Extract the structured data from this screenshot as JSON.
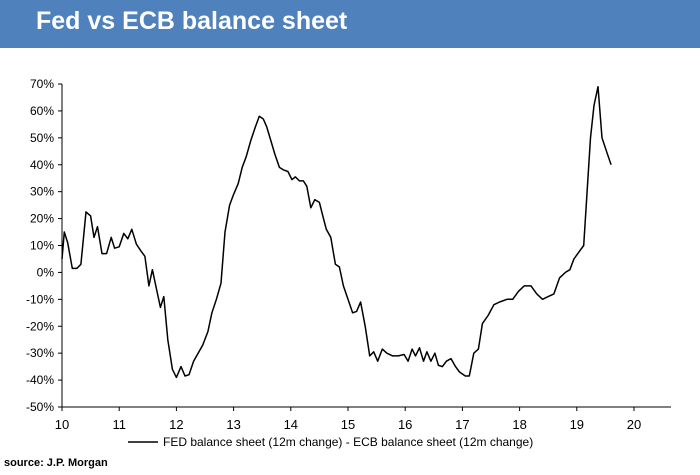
{
  "header": {
    "title": "Fed vs ECB balance sheet",
    "background_color": "#4f81bd",
    "text_color": "#ffffff"
  },
  "source": "source: J.P. Morgan",
  "chart_data": {
    "type": "line",
    "title": "",
    "xlabel": "",
    "ylabel": "",
    "xlim": [
      10,
      20.65
    ],
    "ylim": [
      -50,
      70
    ],
    "x_ticks": [
      10,
      11,
      12,
      13,
      14,
      15,
      16,
      17,
      18,
      19,
      20
    ],
    "x_tick_labels": [
      "10",
      "11",
      "12",
      "13",
      "14",
      "15",
      "16",
      "17",
      "18",
      "19",
      "20"
    ],
    "y_ticks": [
      -50,
      -40,
      -30,
      -20,
      -10,
      0,
      10,
      20,
      30,
      40,
      50,
      60,
      70
    ],
    "y_tick_labels": [
      "-50%",
      "-40%",
      "-30%",
      "-20%",
      "-10%",
      "0%",
      "10%",
      "20%",
      "30%",
      "40%",
      "50%",
      "60%",
      "70%"
    ],
    "grid": false,
    "legend_position": "bottom",
    "series": [
      {
        "name": "FED balance sheet (12m change) - ECB balance sheet (12m change)",
        "color": "#000000",
        "points": [
          [
            10.0,
            5
          ],
          [
            10.04,
            15
          ],
          [
            10.1,
            11
          ],
          [
            10.18,
            1.5
          ],
          [
            10.26,
            1.5
          ],
          [
            10.33,
            3
          ],
          [
            10.42,
            22.5
          ],
          [
            10.5,
            21
          ],
          [
            10.56,
            13
          ],
          [
            10.62,
            17
          ],
          [
            10.7,
            7
          ],
          [
            10.78,
            7
          ],
          [
            10.86,
            13
          ],
          [
            10.92,
            9
          ],
          [
            11.0,
            9.5
          ],
          [
            11.08,
            14.5
          ],
          [
            11.15,
            12.5
          ],
          [
            11.22,
            16
          ],
          [
            11.3,
            10.5
          ],
          [
            11.38,
            8
          ],
          [
            11.45,
            6
          ],
          [
            11.52,
            -5
          ],
          [
            11.58,
            1
          ],
          [
            11.65,
            -6
          ],
          [
            11.72,
            -13
          ],
          [
            11.78,
            -9
          ],
          [
            11.85,
            -25
          ],
          [
            11.93,
            -36
          ],
          [
            12.0,
            -39
          ],
          [
            12.08,
            -35
          ],
          [
            12.15,
            -38.5
          ],
          [
            12.22,
            -38
          ],
          [
            12.3,
            -33
          ],
          [
            12.38,
            -30
          ],
          [
            12.46,
            -27
          ],
          [
            12.55,
            -22
          ],
          [
            12.62,
            -15
          ],
          [
            12.7,
            -10
          ],
          [
            12.78,
            -4
          ],
          [
            12.85,
            15
          ],
          [
            12.93,
            25
          ],
          [
            13.0,
            29
          ],
          [
            13.08,
            33
          ],
          [
            13.15,
            39
          ],
          [
            13.22,
            43
          ],
          [
            13.3,
            49
          ],
          [
            13.38,
            54
          ],
          [
            13.45,
            58
          ],
          [
            13.52,
            57
          ],
          [
            13.58,
            54
          ],
          [
            13.65,
            49
          ],
          [
            13.72,
            44
          ],
          [
            13.8,
            39
          ],
          [
            13.88,
            38
          ],
          [
            13.95,
            37.5
          ],
          [
            14.02,
            34.5
          ],
          [
            14.08,
            35.5
          ],
          [
            14.15,
            34
          ],
          [
            14.22,
            34
          ],
          [
            14.28,
            32
          ],
          [
            14.35,
            24
          ],
          [
            14.42,
            27
          ],
          [
            14.5,
            26
          ],
          [
            14.56,
            21
          ],
          [
            14.62,
            16
          ],
          [
            14.7,
            13
          ],
          [
            14.78,
            3
          ],
          [
            14.85,
            2
          ],
          [
            14.92,
            -5
          ],
          [
            15.0,
            -10
          ],
          [
            15.08,
            -15
          ],
          [
            15.15,
            -14.5
          ],
          [
            15.22,
            -11
          ],
          [
            15.3,
            -20
          ],
          [
            15.38,
            -31
          ],
          [
            15.45,
            -29.5
          ],
          [
            15.52,
            -33
          ],
          [
            15.6,
            -28.5
          ],
          [
            15.68,
            -30
          ],
          [
            15.78,
            -31
          ],
          [
            15.88,
            -31
          ],
          [
            15.98,
            -30.5
          ],
          [
            16.05,
            -33
          ],
          [
            16.12,
            -28.5
          ],
          [
            16.18,
            -31
          ],
          [
            16.25,
            -28
          ],
          [
            16.32,
            -33
          ],
          [
            16.38,
            -29.5
          ],
          [
            16.45,
            -33
          ],
          [
            16.52,
            -30
          ],
          [
            16.58,
            -34.5
          ],
          [
            16.65,
            -35
          ],
          [
            16.72,
            -33
          ],
          [
            16.8,
            -32
          ],
          [
            16.88,
            -35
          ],
          [
            16.95,
            -37
          ],
          [
            17.05,
            -38.5
          ],
          [
            17.12,
            -38.5
          ],
          [
            17.2,
            -30
          ],
          [
            17.28,
            -28.5
          ],
          [
            17.35,
            -19
          ],
          [
            17.45,
            -16
          ],
          [
            17.55,
            -12
          ],
          [
            17.65,
            -11
          ],
          [
            17.78,
            -10
          ],
          [
            17.88,
            -10
          ],
          [
            17.98,
            -7
          ],
          [
            18.08,
            -5
          ],
          [
            18.2,
            -5
          ],
          [
            18.3,
            -8
          ],
          [
            18.4,
            -10
          ],
          [
            18.5,
            -9
          ],
          [
            18.6,
            -8
          ],
          [
            18.7,
            -2
          ],
          [
            18.8,
            0
          ],
          [
            18.88,
            1
          ],
          [
            18.95,
            5
          ],
          [
            19.05,
            8
          ],
          [
            19.12,
            10
          ],
          [
            19.18,
            30
          ],
          [
            19.24,
            50
          ],
          [
            19.3,
            62
          ],
          [
            19.37,
            69
          ],
          [
            19.44,
            50
          ],
          [
            19.52,
            45
          ],
          [
            19.6,
            40
          ]
        ]
      }
    ]
  }
}
